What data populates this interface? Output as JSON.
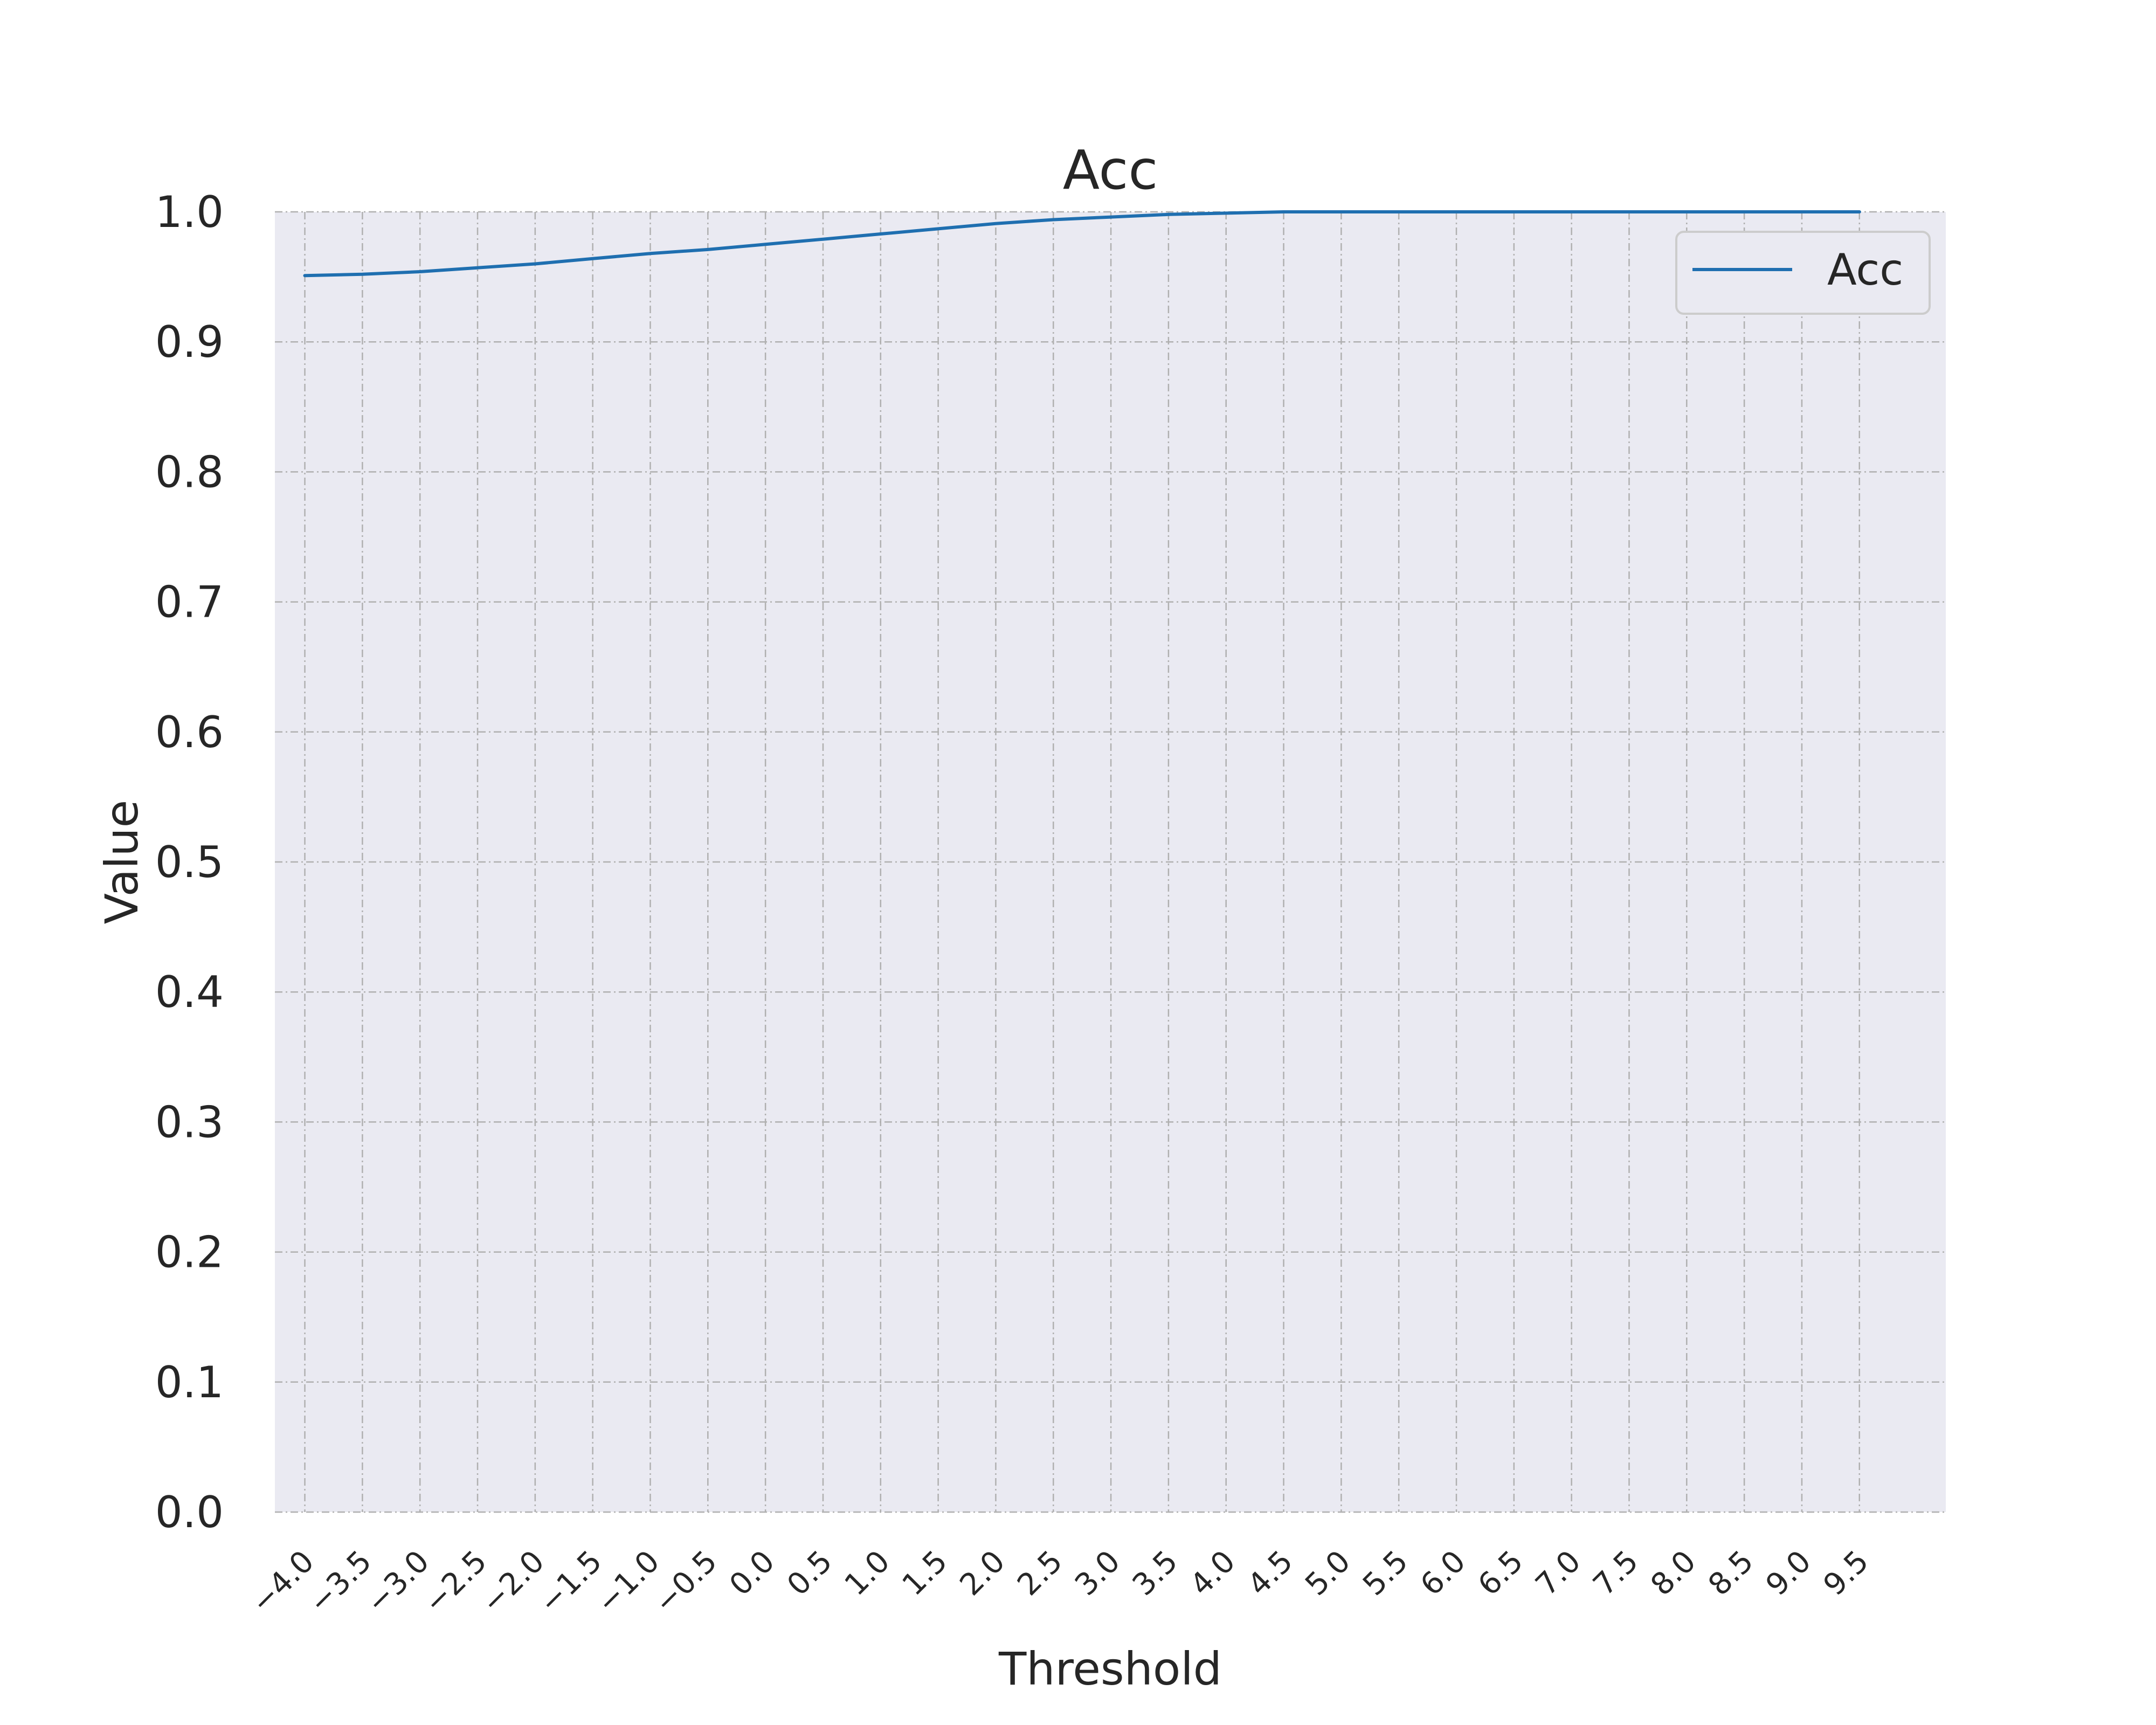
{
  "chart_data": {
    "type": "line",
    "title": "Acc",
    "xlabel": "Threshold",
    "ylabel": "Value",
    "xlim": [
      -4.26,
      10.25
    ],
    "ylim": [
      0.0,
      1.0
    ],
    "x_ticks": [
      -4.0,
      -3.5,
      -3.0,
      -2.5,
      -2.0,
      -1.5,
      -1.0,
      -0.5,
      0.0,
      0.5,
      1.0,
      1.5,
      2.0,
      2.5,
      3.0,
      3.5,
      4.0,
      4.5,
      5.0,
      5.5,
      6.0,
      6.5,
      7.0,
      7.5,
      8.0,
      8.5,
      9.0,
      9.5
    ],
    "x_tick_labels": [
      "−4.0",
      "−3.5",
      "−3.0",
      "−2.5",
      "−2.0",
      "−1.5",
      "−1.0",
      "−0.5",
      "0.0",
      "0.5",
      "1.0",
      "1.5",
      "2.0",
      "2.5",
      "3.0",
      "3.5",
      "4.0",
      "4.5",
      "5.0",
      "5.5",
      "6.0",
      "6.5",
      "7.0",
      "7.5",
      "8.0",
      "8.5",
      "9.0",
      "9.5"
    ],
    "y_ticks": [
      0.0,
      0.1,
      0.2,
      0.3,
      0.4,
      0.5,
      0.6,
      0.7,
      0.8,
      0.9,
      1.0
    ],
    "y_tick_labels": [
      "0.0",
      "0.1",
      "0.2",
      "0.3",
      "0.4",
      "0.5",
      "0.6",
      "0.7",
      "0.8",
      "0.9",
      "1.0"
    ],
    "grid": true,
    "legend": {
      "position": "upper right",
      "entries": [
        "Acc"
      ]
    },
    "series": [
      {
        "name": "Acc",
        "color": "#1f6fb0",
        "x": [
          -4.0,
          -3.5,
          -3.0,
          -2.5,
          -2.0,
          -1.5,
          -1.0,
          -0.5,
          0.0,
          0.5,
          1.0,
          1.5,
          2.0,
          2.5,
          3.0,
          3.5,
          4.0,
          4.5,
          5.0,
          5.5,
          6.0,
          6.5,
          7.0,
          7.5,
          8.0,
          8.5,
          9.0,
          9.5
        ],
        "y": [
          0.951,
          0.952,
          0.954,
          0.957,
          0.96,
          0.964,
          0.968,
          0.971,
          0.975,
          0.979,
          0.983,
          0.987,
          0.991,
          0.994,
          0.996,
          0.998,
          0.999,
          1.0,
          1.0,
          1.0,
          1.0,
          1.0,
          1.0,
          1.0,
          1.0,
          1.0,
          1.0,
          1.0
        ]
      }
    ]
  },
  "colors": {
    "plot_background": "#eaeaf2",
    "grid": "#b0b0b0",
    "text": "#262626",
    "legend_frame": "#cccccc"
  }
}
